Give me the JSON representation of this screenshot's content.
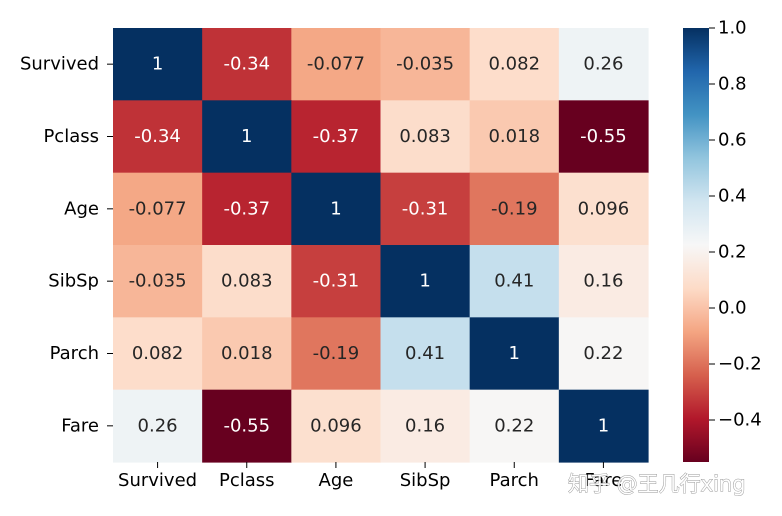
{
  "chart_data": {
    "type": "heatmap",
    "title": "",
    "xlabel": "",
    "ylabel": "",
    "x_labels": [
      "Survived",
      "Pclass",
      "Age",
      "SibSp",
      "Parch",
      "Fare"
    ],
    "y_labels": [
      "Survived",
      "Pclass",
      "Age",
      "SibSp",
      "Parch",
      "Fare"
    ],
    "values": [
      [
        1,
        -0.34,
        -0.077,
        -0.035,
        0.082,
        0.26
      ],
      [
        -0.34,
        1,
        -0.37,
        0.083,
        0.018,
        -0.55
      ],
      [
        -0.077,
        -0.37,
        1,
        -0.31,
        -0.19,
        0.096
      ],
      [
        -0.035,
        0.083,
        -0.31,
        1,
        0.41,
        0.16
      ],
      [
        0.082,
        0.018,
        -0.19,
        0.41,
        1,
        0.22
      ],
      [
        0.26,
        -0.55,
        0.096,
        0.16,
        0.22,
        1
      ]
    ],
    "annotations": [
      [
        "1",
        "-0.34",
        "-0.077",
        "-0.035",
        "0.082",
        "0.26"
      ],
      [
        "-0.34",
        "1",
        "-0.37",
        "0.083",
        "0.018",
        "-0.55"
      ],
      [
        "-0.077",
        "-0.37",
        "1",
        "-0.31",
        "-0.19",
        "0.096"
      ],
      [
        "-0.035",
        "0.083",
        "-0.31",
        "1",
        "0.41",
        "0.16"
      ],
      [
        "0.082",
        "0.018",
        "-0.19",
        "0.41",
        "1",
        "0.22"
      ],
      [
        "0.26",
        "-0.55",
        "0.096",
        "0.16",
        "0.22",
        "1"
      ]
    ],
    "colormap": "RdBu",
    "colorbar": {
      "range": [
        -0.55,
        1.0
      ],
      "ticks": [
        1.0,
        0.8,
        0.6,
        0.4,
        0.2,
        0.0,
        -0.2,
        -0.4
      ],
      "tick_labels": [
        "1.0",
        "0.8",
        "0.6",
        "0.4",
        "0.2",
        "0.0",
        "−0.2",
        "−0.4"
      ]
    },
    "legend": "colorbar-right",
    "grid": false
  },
  "watermark": {
    "text": "知乎 @王几行xing"
  },
  "colors": {
    "stops": [
      "#67001f",
      "#b2182b",
      "#d6604d",
      "#f4a582",
      "#fddbc7",
      "#f7f7f7",
      "#d1e5f0",
      "#92c5de",
      "#4393c3",
      "#2166ac",
      "#053061"
    ],
    "text_light": "#ffffff",
    "text_dark": "#262626"
  }
}
